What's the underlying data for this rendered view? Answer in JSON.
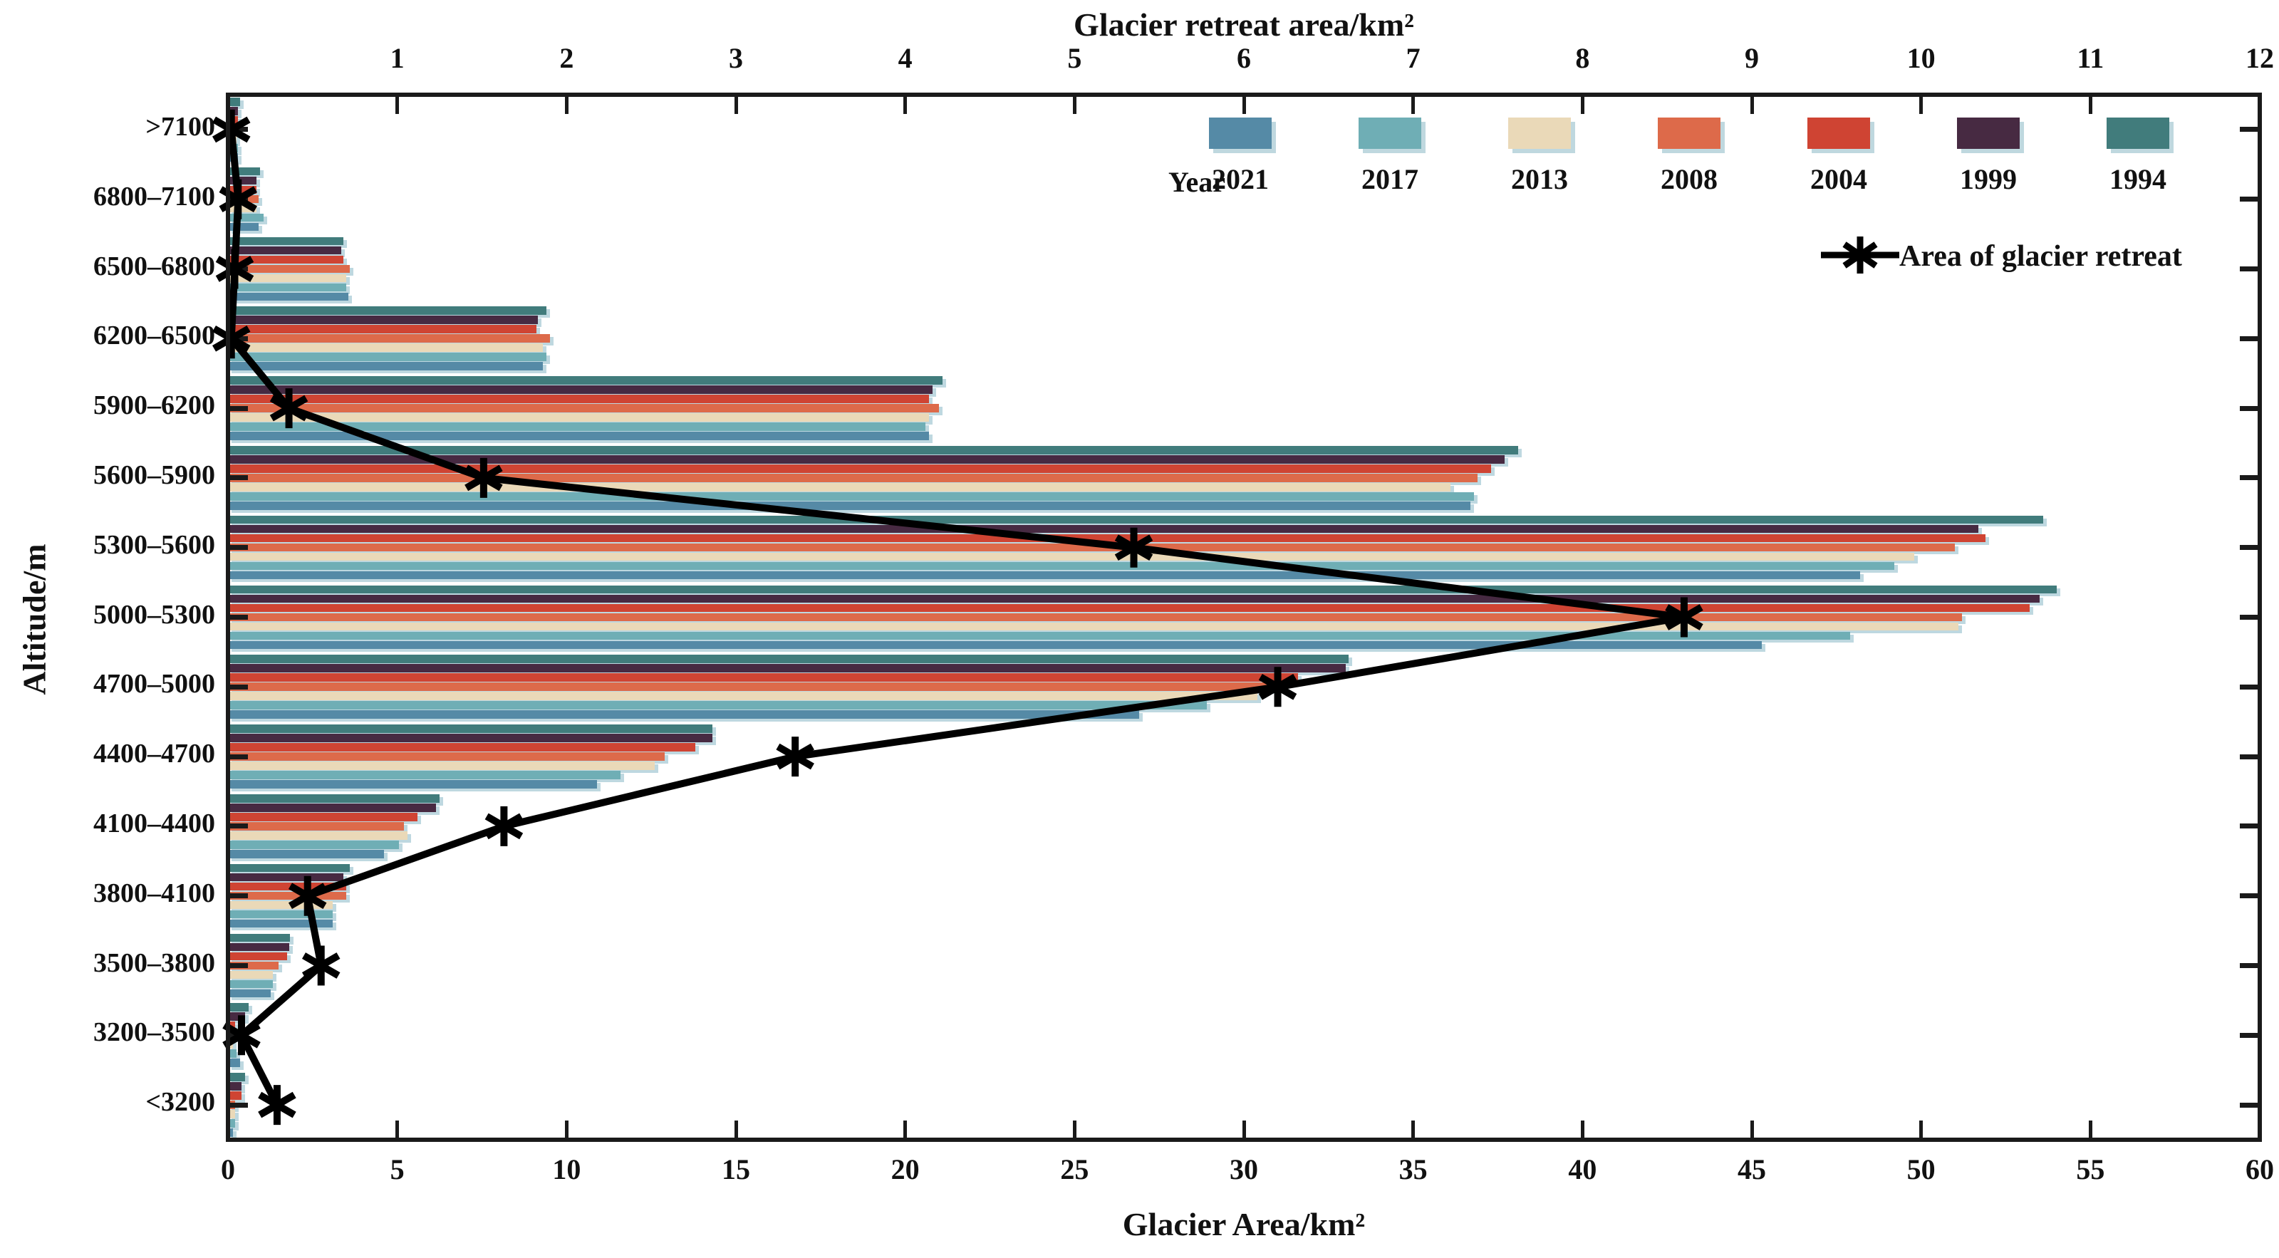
{
  "figure": {
    "background": "#ffffff",
    "axes_color": "#1a1a1a"
  },
  "top_axis": {
    "title": "Glacier retreat area/km²",
    "min": 0,
    "max": 12,
    "tick_step": 1,
    "tick_labels": [
      "1",
      "2",
      "3",
      "4",
      "5",
      "6",
      "7",
      "8",
      "9",
      "10",
      "11",
      "12"
    ]
  },
  "bottom_axis": {
    "title": "Glacier Area/km²",
    "min": 0,
    "max": 60,
    "tick_step": 5,
    "tick_labels": [
      "0",
      "5",
      "10",
      "15",
      "20",
      "25",
      "30",
      "35",
      "40",
      "45",
      "50",
      "55",
      "60"
    ]
  },
  "left_axis": {
    "title": "Altitude/m"
  },
  "legend": {
    "year_caption": "Year",
    "line_label": "Area of glacier retreat",
    "line_color": "#000000"
  },
  "chart_data": {
    "type": "bar",
    "orientation": "horizontal",
    "title": "",
    "xlabel_bottom": "Glacier Area/km²",
    "xlabel_top": "Glacier retreat area/km²",
    "ylabel": "Altitude/m",
    "xlim_bottom": [
      0,
      60
    ],
    "xlim_top": [
      0,
      12
    ],
    "grid": false,
    "legend_position": "top-right",
    "categories": [
      ">7100",
      "6800–7100",
      "6500–6800",
      "6200–6500",
      "5900–6200",
      "5600–5900",
      "5300–5600",
      "5000–5300",
      "4700–5000",
      "4400–4700",
      "4100–4400",
      "3800–4100",
      "3500–3800",
      "3200–3500",
      "<3200"
    ],
    "series": [
      {
        "name": "2021",
        "color": "#558aa6",
        "values": [
          0.3,
          0.9,
          3.55,
          9.3,
          20.7,
          36.7,
          48.2,
          45.3,
          26.9,
          10.9,
          4.6,
          3.1,
          1.27,
          0.35,
          0.15
        ]
      },
      {
        "name": "2017",
        "color": "#6faeb5",
        "values": [
          0.3,
          1.05,
          3.5,
          9.4,
          20.6,
          36.8,
          49.2,
          47.9,
          28.9,
          11.6,
          5.05,
          3.1,
          1.33,
          0.25,
          0.2
        ]
      },
      {
        "name": "2013",
        "color": "#ead9b8",
        "values": [
          0.25,
          0.85,
          3.5,
          9.3,
          20.7,
          36.1,
          49.8,
          51.1,
          30.4,
          12.6,
          5.3,
          3.1,
          1.33,
          0.15,
          0.2
        ]
      },
      {
        "name": "2008",
        "color": "#dd6a4a",
        "values": [
          0.25,
          0.9,
          3.6,
          9.5,
          21.0,
          36.9,
          51.0,
          51.2,
          30.8,
          12.9,
          5.2,
          3.5,
          1.5,
          0.2,
          0.2
        ]
      },
      {
        "name": "2004",
        "color": "#cf4433",
        "values": [
          0.3,
          0.85,
          3.4,
          9.1,
          20.7,
          37.3,
          51.9,
          53.2,
          31.6,
          13.8,
          5.6,
          3.5,
          1.75,
          0.2,
          0.4
        ]
      },
      {
        "name": "1999",
        "color": "#472a42",
        "values": [
          0.3,
          0.85,
          3.35,
          9.15,
          20.8,
          37.7,
          51.7,
          53.5,
          33.0,
          14.3,
          6.15,
          3.4,
          1.8,
          0.5,
          0.4
        ]
      },
      {
        "name": "1994",
        "color": "#417c7c",
        "values": [
          0.35,
          0.95,
          3.4,
          9.4,
          21.1,
          38.1,
          53.6,
          54.0,
          33.1,
          14.3,
          6.25,
          3.6,
          1.83,
          0.6,
          0.5
        ]
      }
    ],
    "line_series": {
      "name": "Area of glacier retreat",
      "axis": "top",
      "color": "#000000",
      "marker": "asterisk",
      "values": [
        0.02,
        0.06,
        0.04,
        0.02,
        0.36,
        1.51,
        5.35,
        8.6,
        6.2,
        3.35,
        1.63,
        0.47,
        0.55,
        0.08,
        0.29
      ]
    }
  }
}
